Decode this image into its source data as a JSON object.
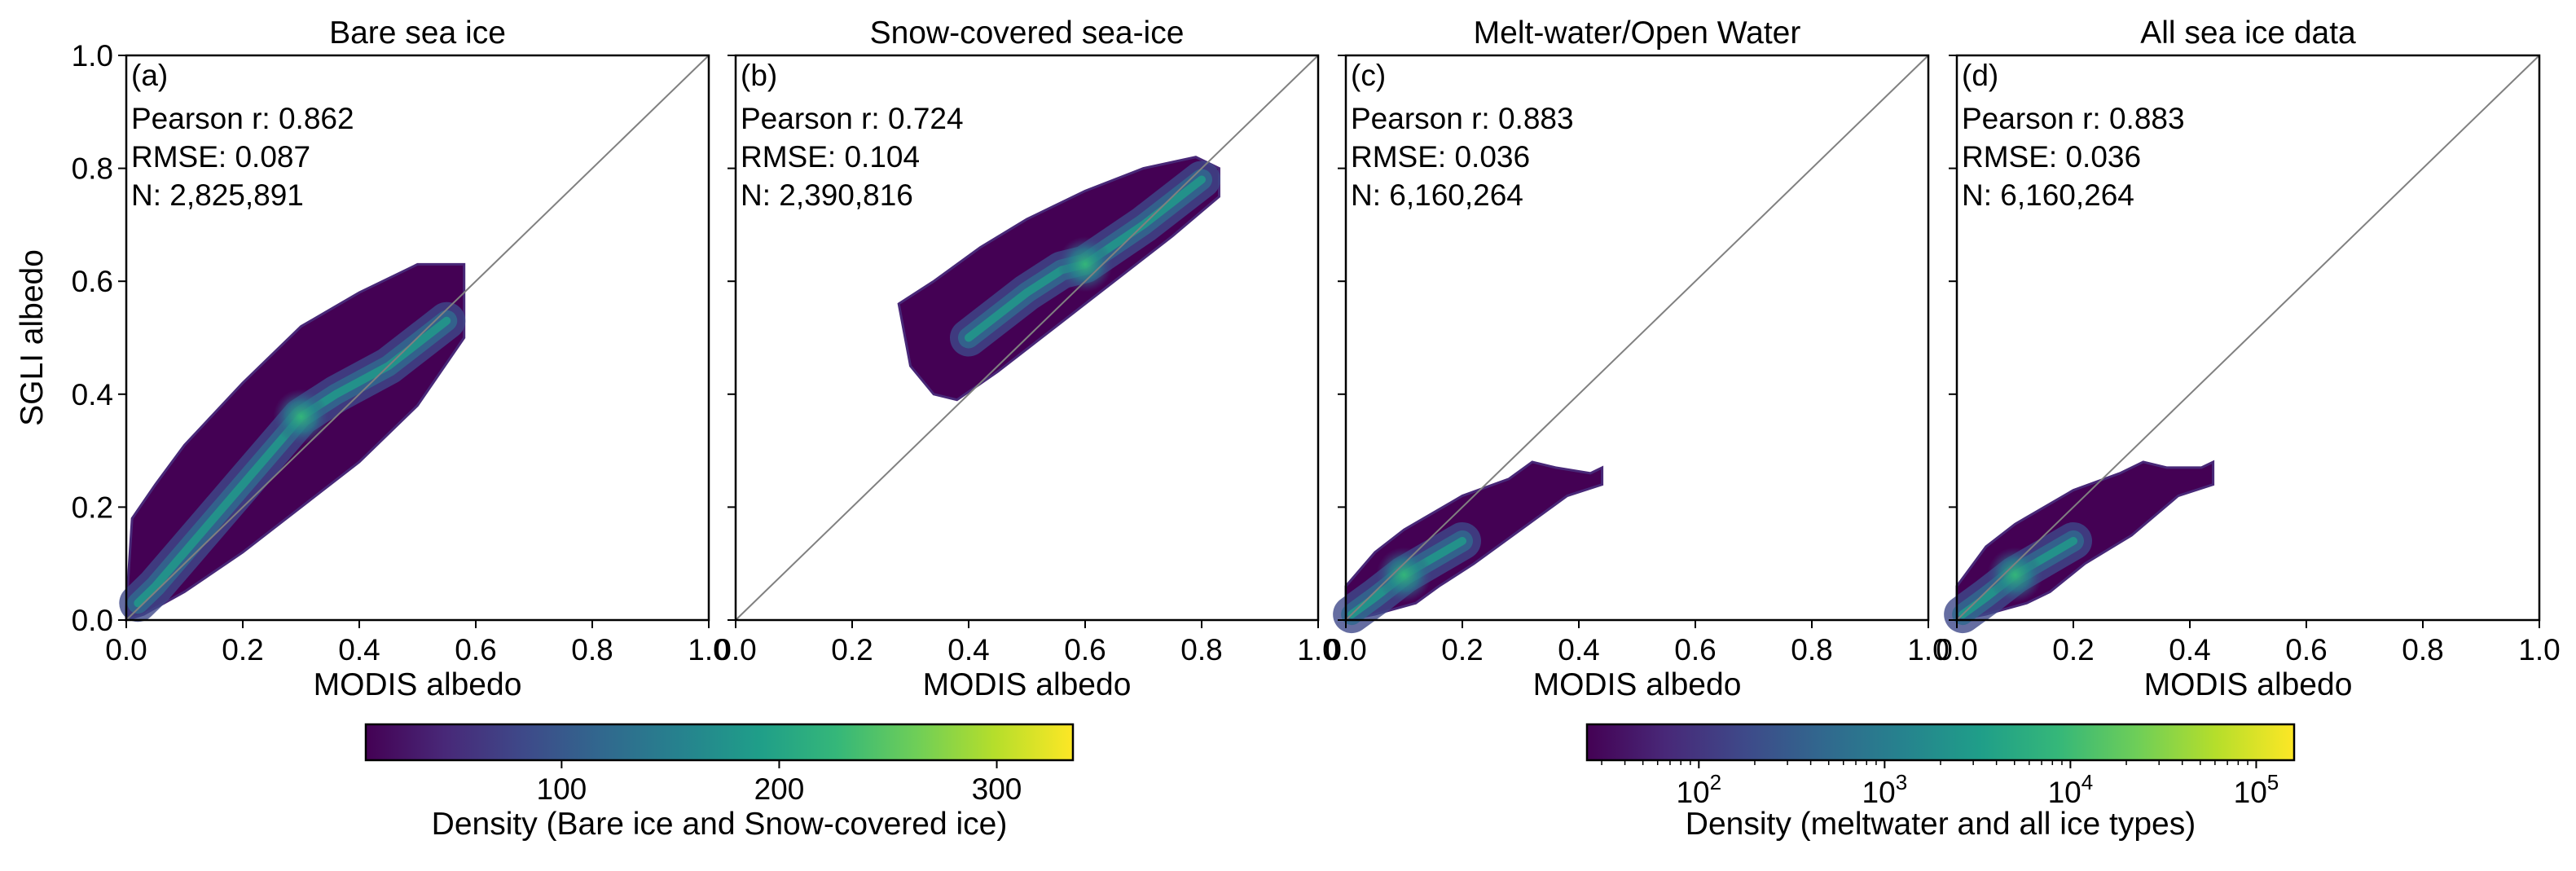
{
  "figure": {
    "shared_ylabel": "SGLI albedo",
    "colors": {
      "viridis": [
        "#440154",
        "#482878",
        "#3e4989",
        "#31688e",
        "#26828e",
        "#1f9e89",
        "#35b779",
        "#6ece58",
        "#b5de2b",
        "#fde725"
      ],
      "identity_line": "#808080"
    }
  },
  "chart_data": [
    {
      "type": "scatter",
      "subtype": "density-hexbin",
      "title": "Bare sea ice",
      "panel_label": "(a)",
      "stats": [
        "Pearson r: 0.862",
        "RMSE: 0.087",
        "N: 2,825,891"
      ],
      "xlabel": "MODIS albedo",
      "ylabel": "SGLI albedo",
      "xlim": [
        0,
        1
      ],
      "ylim": [
        0,
        1
      ],
      "xticks": [
        "0.0",
        "0.2",
        "0.4",
        "0.6",
        "0.8",
        "1.0"
      ],
      "yticks": [
        "0.0",
        "0.2",
        "0.4",
        "0.6",
        "0.8",
        "1.0"
      ],
      "identity_line": true,
      "density_cloud": {
        "upper_edge": [
          [
            0.0,
            0.02
          ],
          [
            0.01,
            0.18
          ],
          [
            0.05,
            0.24
          ],
          [
            0.1,
            0.31
          ],
          [
            0.2,
            0.42
          ],
          [
            0.3,
            0.52
          ],
          [
            0.4,
            0.58
          ],
          [
            0.5,
            0.63
          ],
          [
            0.58,
            0.63
          ]
        ],
        "lower_edge": [
          [
            0.58,
            0.5
          ],
          [
            0.5,
            0.38
          ],
          [
            0.4,
            0.28
          ],
          [
            0.3,
            0.2
          ],
          [
            0.2,
            0.12
          ],
          [
            0.1,
            0.05
          ],
          [
            0.03,
            0.01
          ],
          [
            0.0,
            0.0
          ]
        ],
        "ridge": [
          [
            0.02,
            0.03
          ],
          [
            0.05,
            0.06
          ],
          [
            0.1,
            0.12
          ],
          [
            0.2,
            0.24
          ],
          [
            0.3,
            0.36
          ],
          [
            0.36,
            0.4
          ],
          [
            0.45,
            0.45
          ],
          [
            0.55,
            0.53
          ]
        ]
      }
    },
    {
      "type": "scatter",
      "subtype": "density-hexbin",
      "title": "Snow-covered sea-ice",
      "panel_label": "(b)",
      "stats": [
        "Pearson r: 0.724",
        "RMSE: 0.104",
        "N: 2,390,816"
      ],
      "xlabel": "MODIS albedo",
      "xlim": [
        0,
        1
      ],
      "ylim": [
        0,
        1
      ],
      "xticks": [
        "0.0",
        "0.2",
        "0.4",
        "0.6",
        "0.8",
        "1.0"
      ],
      "identity_line": true,
      "density_cloud": {
        "upper_edge": [
          [
            0.28,
            0.56
          ],
          [
            0.34,
            0.6
          ],
          [
            0.42,
            0.66
          ],
          [
            0.5,
            0.71
          ],
          [
            0.6,
            0.76
          ],
          [
            0.7,
            0.8
          ],
          [
            0.79,
            0.82
          ],
          [
            0.83,
            0.8
          ]
        ],
        "lower_edge": [
          [
            0.83,
            0.75
          ],
          [
            0.75,
            0.68
          ],
          [
            0.65,
            0.6
          ],
          [
            0.55,
            0.52
          ],
          [
            0.45,
            0.44
          ],
          [
            0.38,
            0.39
          ],
          [
            0.34,
            0.4
          ],
          [
            0.3,
            0.45
          ]
        ],
        "ridge": [
          [
            0.4,
            0.5
          ],
          [
            0.5,
            0.58
          ],
          [
            0.56,
            0.62
          ],
          [
            0.6,
            0.63
          ],
          [
            0.7,
            0.7
          ],
          [
            0.8,
            0.78
          ]
        ]
      }
    },
    {
      "type": "scatter",
      "subtype": "density-hexbin",
      "title": "Melt-water/Open Water",
      "panel_label": "(c)",
      "stats": [
        "Pearson r: 0.883",
        "RMSE: 0.036",
        "N: 6,160,264"
      ],
      "xlabel": "MODIS albedo",
      "xlim": [
        0,
        1
      ],
      "ylim": [
        0,
        1
      ],
      "xticks": [
        "0.0",
        "0.2",
        "0.4",
        "0.6",
        "0.8",
        "1.0"
      ],
      "identity_line": true,
      "density_cloud": {
        "upper_edge": [
          [
            0.0,
            0.06
          ],
          [
            0.05,
            0.12
          ],
          [
            0.1,
            0.16
          ],
          [
            0.2,
            0.22
          ],
          [
            0.28,
            0.25
          ],
          [
            0.32,
            0.28
          ],
          [
            0.36,
            0.27
          ],
          [
            0.42,
            0.26
          ],
          [
            0.44,
            0.27
          ]
        ],
        "lower_edge": [
          [
            0.44,
            0.24
          ],
          [
            0.38,
            0.22
          ],
          [
            0.3,
            0.16
          ],
          [
            0.22,
            0.1
          ],
          [
            0.16,
            0.06
          ],
          [
            0.12,
            0.03
          ],
          [
            0.05,
            0.01
          ],
          [
            0.0,
            0.0
          ]
        ],
        "ridge": [
          [
            0.01,
            0.01
          ],
          [
            0.05,
            0.04
          ],
          [
            0.1,
            0.08
          ],
          [
            0.15,
            0.11
          ],
          [
            0.2,
            0.14
          ]
        ]
      }
    },
    {
      "type": "scatter",
      "subtype": "density-hexbin",
      "title": "All sea ice data",
      "panel_label": "(d)",
      "stats": [
        "Pearson r: 0.883",
        "RMSE: 0.036",
        "N: 6,160,264"
      ],
      "xlabel": "MODIS albedo",
      "xlim": [
        0,
        1
      ],
      "ylim": [
        0,
        1
      ],
      "xticks": [
        "0.0",
        "0.2",
        "0.4",
        "0.6",
        "0.8",
        "1.0"
      ],
      "identity_line": true,
      "density_cloud": {
        "upper_edge": [
          [
            0.0,
            0.06
          ],
          [
            0.05,
            0.13
          ],
          [
            0.1,
            0.17
          ],
          [
            0.2,
            0.23
          ],
          [
            0.28,
            0.26
          ],
          [
            0.32,
            0.28
          ],
          [
            0.36,
            0.27
          ],
          [
            0.42,
            0.27
          ],
          [
            0.44,
            0.28
          ]
        ],
        "lower_edge": [
          [
            0.44,
            0.24
          ],
          [
            0.38,
            0.22
          ],
          [
            0.3,
            0.15
          ],
          [
            0.22,
            0.1
          ],
          [
            0.16,
            0.05
          ],
          [
            0.12,
            0.03
          ],
          [
            0.05,
            0.01
          ],
          [
            0.0,
            0.0
          ]
        ],
        "ridge": [
          [
            0.01,
            0.01
          ],
          [
            0.05,
            0.04
          ],
          [
            0.1,
            0.08
          ],
          [
            0.15,
            0.11
          ],
          [
            0.2,
            0.14
          ]
        ]
      }
    }
  ],
  "colorbars": [
    {
      "label": "Density (Bare ice and Snow-covered ice)",
      "scale": "linear",
      "range": [
        10,
        335
      ],
      "ticks": [
        {
          "value": 100,
          "label": "100"
        },
        {
          "value": 200,
          "label": "200"
        },
        {
          "value": 300,
          "label": "300"
        }
      ]
    },
    {
      "label": "Density (meltwater and all ice types)",
      "scale": "log",
      "range": [
        25,
        160000
      ],
      "ticks": [
        {
          "value": 100,
          "base": "10",
          "exp": "2"
        },
        {
          "value": 1000,
          "base": "10",
          "exp": "3"
        },
        {
          "value": 10000,
          "base": "10",
          "exp": "4"
        },
        {
          "value": 100000,
          "base": "10",
          "exp": "5"
        }
      ]
    }
  ]
}
